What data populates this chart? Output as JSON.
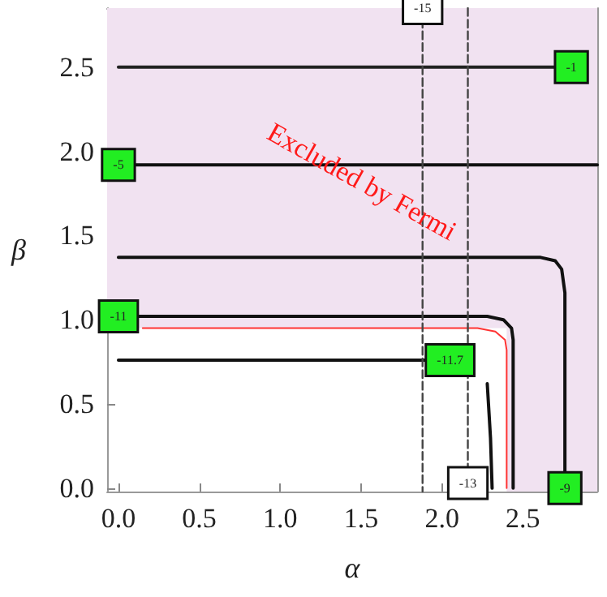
{
  "chart_data": {
    "type": "line",
    "xlabel": "α",
    "ylabel": "β",
    "xlim": [
      -0.07,
      2.96
    ],
    "ylim": [
      -0.02,
      2.85
    ],
    "xticks": [
      {
        "value": 0,
        "label": "0.0"
      },
      0.5,
      {
        "value": 1,
        "label": "1.0"
      },
      1.5,
      {
        "value": 2,
        "label": "2.0"
      },
      2.5
    ],
    "yticks": [
      {
        "value": 0,
        "label": "0.0"
      },
      0.5,
      {
        "value": 1,
        "label": "1.0"
      },
      1.5,
      {
        "value": 2,
        "label": "2.0"
      },
      2.5
    ],
    "grid": false,
    "bands": [
      {
        "axis": "y",
        "from": 0.95,
        "to": 2.85,
        "label": "Excluded by Fermi",
        "color": "#f1e2f1"
      },
      {
        "axis": "x",
        "from": 2.4,
        "to": 2.96,
        "color": "#f1e2f1"
      }
    ],
    "series": [
      {
        "name": "-1",
        "color": "#222222",
        "line_style": "solid",
        "x": [
          2.8,
          0
        ],
        "values": [
          2.5,
          2.5
        ]
      },
      {
        "name": "-5",
        "color": "#111111",
        "line_style": "solid",
        "x": [
          0,
          2.96
        ],
        "values": [
          1.92,
          1.92
        ]
      },
      {
        "name": "-9",
        "color": "#111111",
        "line_style": "solid",
        "x": [
          2.76,
          2.76,
          2.74,
          2.7,
          2.61,
          0
        ],
        "values": [
          0,
          1.16,
          1.3,
          1.35,
          1.37,
          1.37
        ]
      },
      {
        "name": "-11",
        "color": "#111111",
        "line_style": "solid",
        "x": [
          0,
          2.28,
          2.38,
          2.43,
          2.44,
          2.44
        ],
        "values": [
          1.02,
          1.02,
          1.0,
          0.95,
          0.88,
          0
        ]
      },
      {
        "color": "#ff3333",
        "line_style": "solid",
        "x": [
          0.15,
          2.22,
          2.33,
          2.39,
          2.4,
          2.4
        ],
        "values": [
          0.95,
          0.95,
          0.93,
          0.88,
          0.82,
          0
        ]
      },
      {
        "name": "-11.7",
        "color": "#111111",
        "line_style": "solid",
        "x": [
          2.05,
          0,
          null,
          2.28,
          2.3,
          2.31
        ],
        "values": [
          0.76,
          0.76,
          null,
          0.62,
          0.3,
          0
        ]
      },
      {
        "name": "-15",
        "color": "#444444",
        "line_style": "dashed",
        "x": [
          1.88,
          1.88
        ],
        "values": [
          2.85,
          -0.02
        ]
      },
      {
        "name": "-13",
        "color": "#444444",
        "line_style": "dashed",
        "x": [
          2.16,
          2.16
        ],
        "values": [
          0.03,
          2.85
        ]
      }
    ]
  }
}
